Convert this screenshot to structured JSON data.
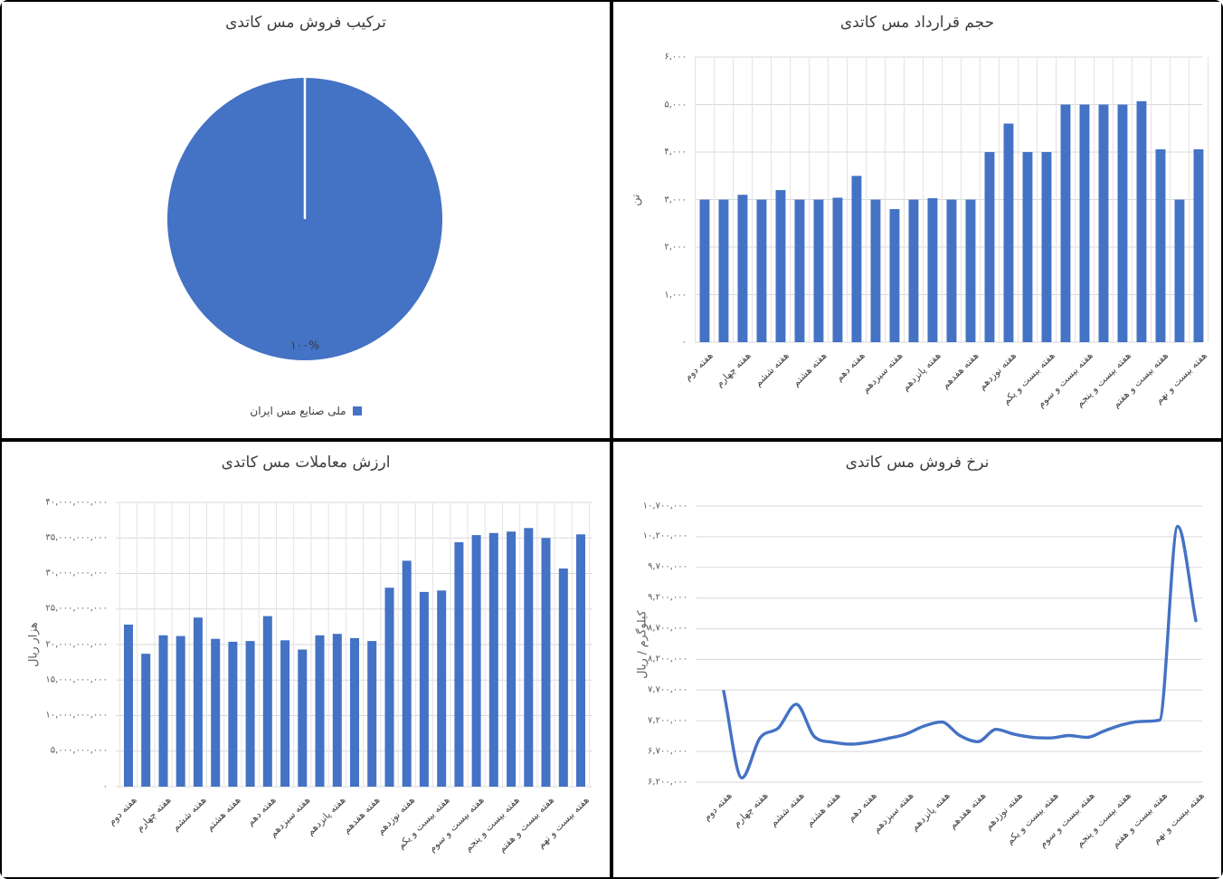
{
  "colors": {
    "accent": "#4472C4",
    "gridline": "#D9D9D9",
    "vertical_gridline": "#E3E3E3",
    "title_text": "#3D3D3D",
    "tick_text": "#595959",
    "x_label_text": "#3F3F3F",
    "pie_divider": "#FFFFFF"
  },
  "chart_data": [
    {
      "type": "pie",
      "title": "ترکیب فروش مس کاتدی",
      "labels": [
        "ملی صنایع مس ایران"
      ],
      "values": [
        100
      ],
      "slice_labels": [
        "۱۰۰%"
      ],
      "legend_position": "bottom",
      "color": "#4472C4"
    },
    {
      "type": "bar",
      "title": "حجم قرارداد مس کاتدی",
      "ylabel": "تن",
      "ylim": [
        0,
        6000
      ],
      "grid": true,
      "color": "#4472C4",
      "y_tick_values": [
        6000,
        5000,
        4000,
        3000,
        2000,
        1000,
        0
      ],
      "y_tick_labels": [
        "۶,۰۰۰",
        "۵,۰۰۰",
        "۴,۰۰۰",
        "۳,۰۰۰",
        "۲,۰۰۰",
        "۱,۰۰۰",
        "۰"
      ],
      "x_label_step": 2,
      "x_tick_labels": [
        "هفته دوم",
        "هفته چهارم",
        "هفته ششم",
        "هفته هشتم",
        "هفته دهم",
        "هفته سیزدهم",
        "هفته پانزدهم",
        "هفته هفدهم",
        "هفته نوزدهم",
        "هفته بیست و یکم",
        "هفته بیست و سوم",
        "هفته بیست و پنجم",
        "هفته بیست و هفتم",
        "هفته بیست و نهم"
      ],
      "values": [
        3000,
        3000,
        3100,
        3000,
        3200,
        3000,
        3000,
        3040,
        3500,
        3000,
        2800,
        3000,
        3030,
        3000,
        3000,
        4000,
        4600,
        4000,
        4000,
        5000,
        5000,
        5000,
        5000,
        5070,
        4060,
        3000,
        4060
      ]
    },
    {
      "type": "bar",
      "title": "ارزش معاملات مس کاتدی",
      "ylabel": "هزار ریال",
      "ylim": [
        0,
        40000000000
      ],
      "grid": true,
      "color": "#4472C4",
      "y_tick_values": [
        40000000000,
        35000000000,
        30000000000,
        25000000000,
        20000000000,
        15000000000,
        10000000000,
        5000000000,
        0
      ],
      "y_tick_labels": [
        "۴۰,۰۰۰,۰۰۰,۰۰۰",
        "۳۵,۰۰۰,۰۰۰,۰۰۰",
        "۳۰,۰۰۰,۰۰۰,۰۰۰",
        "۲۵,۰۰۰,۰۰۰,۰۰۰",
        "۲۰,۰۰۰,۰۰۰,۰۰۰",
        "۱۵,۰۰۰,۰۰۰,۰۰۰",
        "۱۰,۰۰۰,۰۰۰,۰۰۰",
        "۵,۰۰۰,۰۰۰,۰۰۰",
        "۰"
      ],
      "x_label_step": 2,
      "x_tick_labels": [
        "هفته دوم",
        "هفته چهارم",
        "هفته ششم",
        "هفته هشتم",
        "هفته دهم",
        "هفته سیزدهم",
        "هفته پانزدهم",
        "هفته هفدهم",
        "هفته نوزدهم",
        "هفته بیست و یکم",
        "هفته بیست و سوم",
        "هفته بیست و پنجم",
        "هفته بیست و هفتم",
        "هفته بیست و نهم"
      ],
      "values": [
        22800000000,
        18700000000,
        21300000000,
        21200000000,
        23800000000,
        20800000000,
        20400000000,
        20500000000,
        24000000000,
        20600000000,
        19300000000,
        21300000000,
        21500000000,
        20900000000,
        20500000000,
        28000000000,
        31800000000,
        27400000000,
        27600000000,
        34400000000,
        35400000000,
        35700000000,
        35900000000,
        36400000000,
        35000000000,
        30700000000,
        35500000000
      ]
    },
    {
      "type": "line",
      "title": "نرخ فروش مس کاتدی",
      "ylabel": "کیلوگرم / ریال",
      "ylim": [
        6200000,
        10700000
      ],
      "grid": true,
      "color": "#4472C4",
      "y_tick_values": [
        10700000,
        10200000,
        9700000,
        9200000,
        8700000,
        8200000,
        7700000,
        7200000,
        6700000,
        6200000
      ],
      "y_tick_labels": [
        "۱۰,۷۰۰,۰۰۰",
        "۱۰,۲۰۰,۰۰۰",
        "۹,۷۰۰,۰۰۰",
        "۹,۲۰۰,۰۰۰",
        "۸,۷۰۰,۰۰۰",
        "۸,۲۰۰,۰۰۰",
        "۷,۷۰۰,۰۰۰",
        "۷,۲۰۰,۰۰۰",
        "۶,۷۰۰,۰۰۰",
        "۶,۲۰۰,۰۰۰"
      ],
      "x_label_step": 2,
      "x_tick_labels": [
        "هفته دوم",
        "هفته چهارم",
        "هفته ششم",
        "هفته هشتم",
        "هفته دهم",
        "هفته سیزدهم",
        "هفته پانزدهم",
        "هفته هفدهم",
        "هفته نوزدهم",
        "هفته بیست و یکم",
        "هفته بیست و سوم",
        "هفته بیست و پنجم",
        "هفته بیست و هفتم",
        "هفته بیست و نهم"
      ],
      "values": [
        7680000,
        6270000,
        6920000,
        7080000,
        7470000,
        6940000,
        6850000,
        6820000,
        6850000,
        6910000,
        6980000,
        7110000,
        7180000,
        6960000,
        6860000,
        7060000,
        6980000,
        6930000,
        6920000,
        6960000,
        6930000,
        7040000,
        7140000,
        7190000,
        7210000,
        10370000,
        8830000
      ]
    }
  ]
}
